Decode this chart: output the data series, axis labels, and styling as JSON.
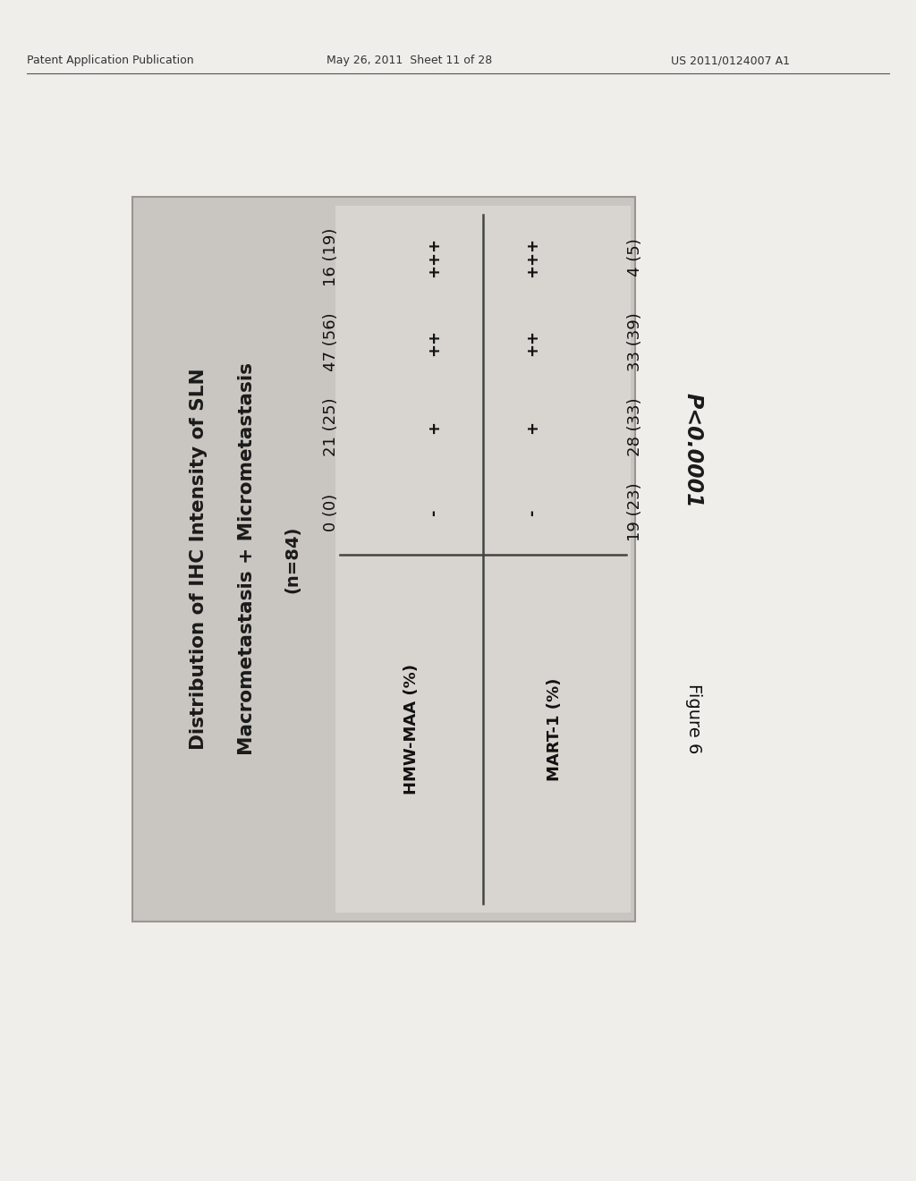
{
  "header_line1": "Distribution of IHC Intensity of SLN",
  "header_line2": "Macrometastasis + Micrometastasis",
  "header_line3": "(n=84)",
  "col1_header": "HMW-MAA (%)",
  "col2_header": "MART-1 (%)",
  "grades": [
    "+++",
    "++",
    "+",
    "-"
  ],
  "col1_values": [
    "16 (19)",
    "47 (56)",
    "21 (25)",
    "0 (0)"
  ],
  "col2_values": [
    "4 (5)",
    "33 (39)",
    "28 (33)",
    "19 (23)"
  ],
  "pvalue": "P<0.0001",
  "figure_label": "Figure 6",
  "page_bg": "#f0eeeb",
  "box_bg": "#c9c6c1",
  "table_area_bg": "#d8d5d0",
  "patent_line1": "Patent Application Publication",
  "patent_line2": "May 26, 2011  Sheet 11 of 28",
  "patent_line3": "US 2011/0124007 A1"
}
